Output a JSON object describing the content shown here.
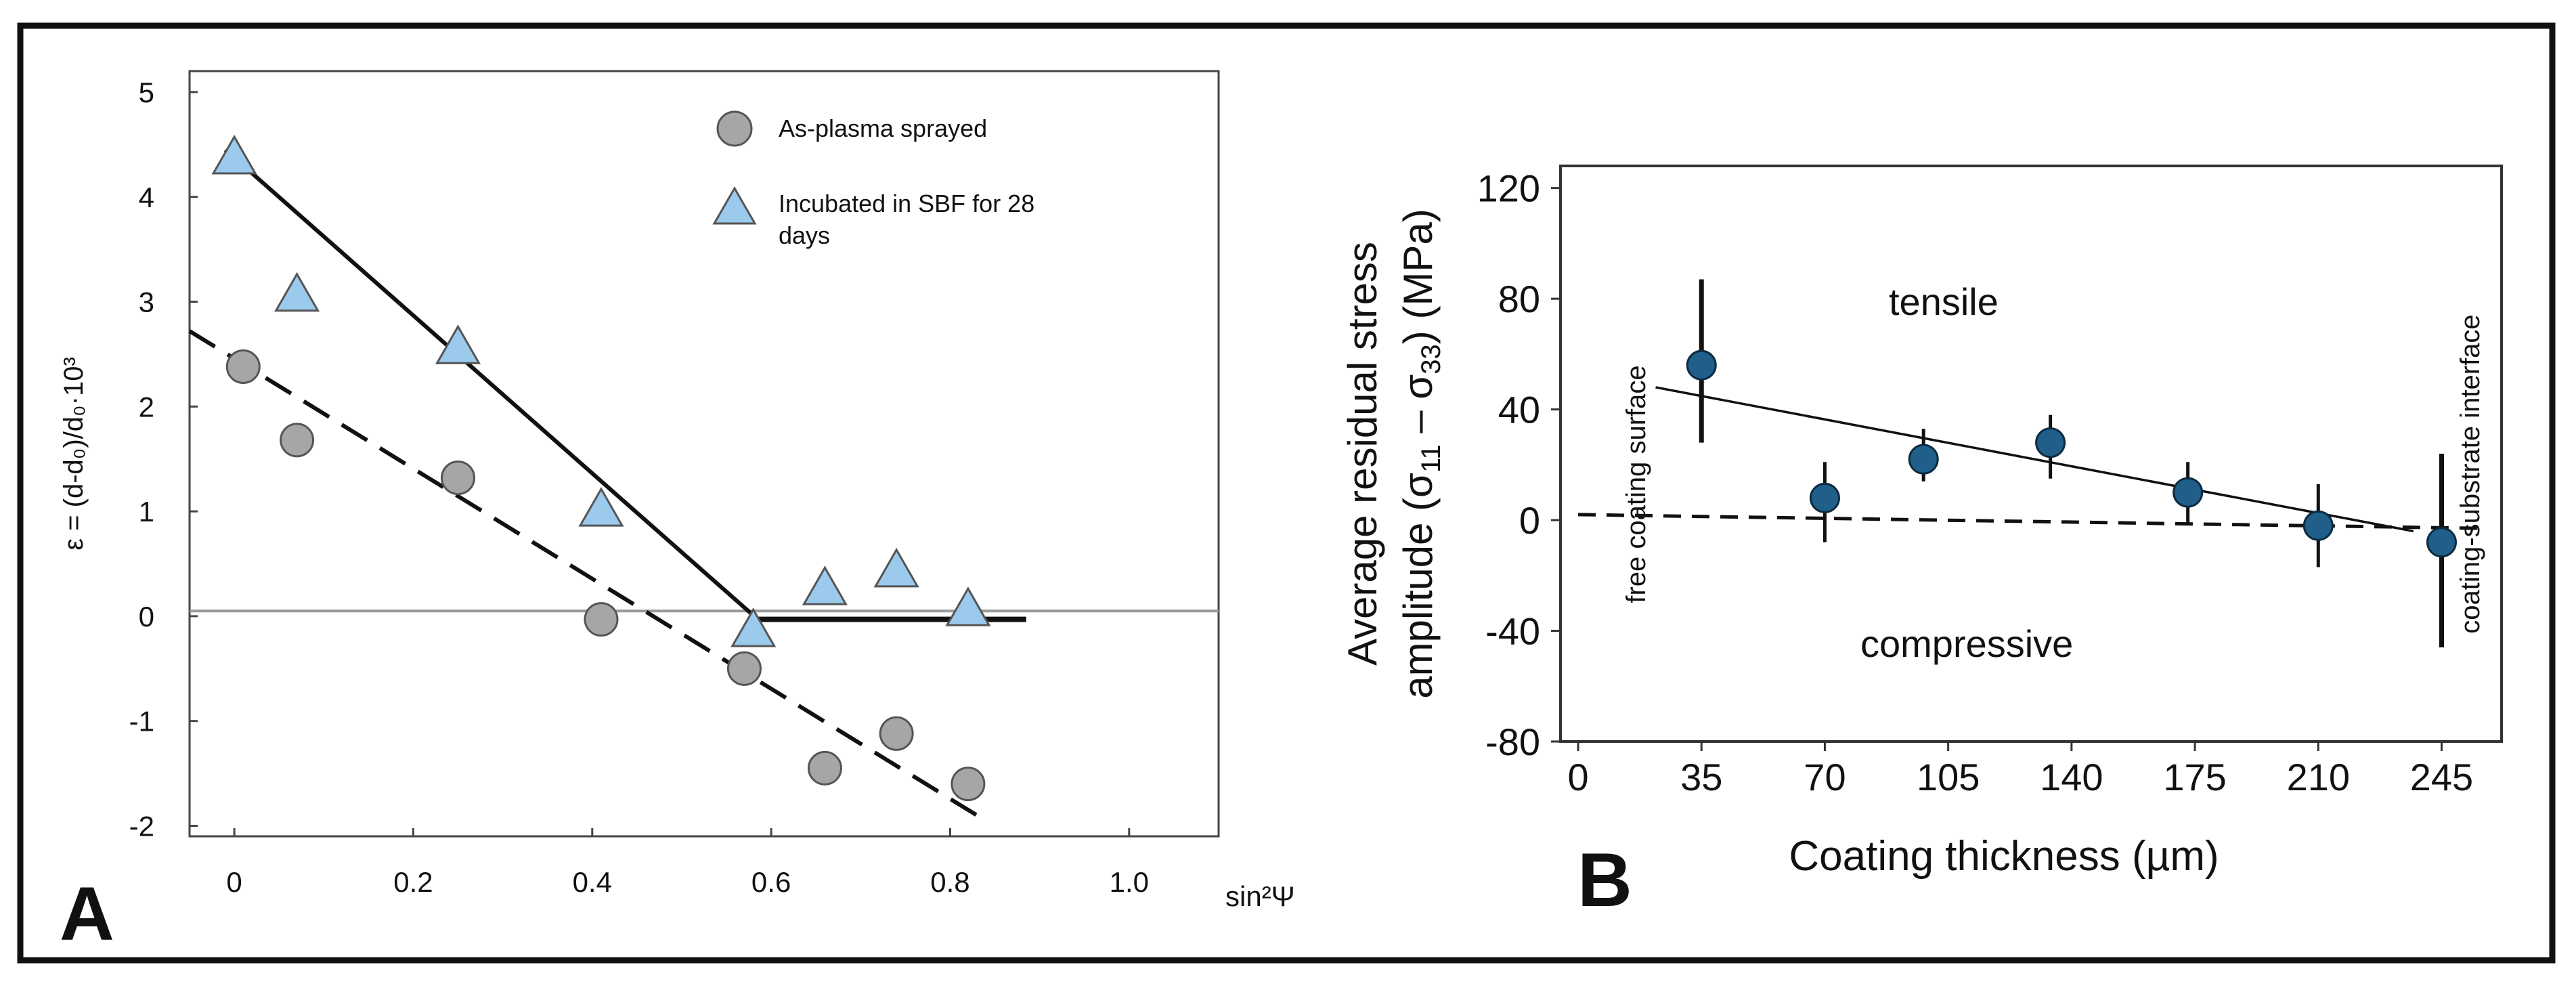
{
  "chart_data": [
    {
      "panel": "A",
      "type": "scatter",
      "panel_label": "A",
      "xlabel": "sin²Ψ",
      "ylabel": "ε = (d-d₀)/d₀·10³",
      "xlim": [
        -0.05,
        1.1
      ],
      "ylim": [
        -2.1,
        5.2
      ],
      "x_ticks": [
        0,
        0.2,
        0.4,
        0.6,
        0.8,
        1.0
      ],
      "x_tick_labels": [
        "0",
        "0.2",
        "0.4",
        "0.6",
        "0.8",
        "1.0"
      ],
      "y_ticks": [
        5,
        4,
        3,
        2,
        1,
        0,
        -1,
        -2
      ],
      "y_tick_labels": [
        "5",
        "4",
        "3",
        "2",
        "1",
        "0",
        "-1",
        "-2"
      ],
      "legend": [
        "As-plasma sprayed",
        "Incubated in SBF for 28 days"
      ],
      "legend_lines": [
        [
          "As-plasma sprayed"
        ],
        [
          "Incubated in SBF for 28",
          "days"
        ]
      ],
      "series": [
        {
          "name": "As-plasma sprayed",
          "marker": "circle",
          "color": "#a6a6a6",
          "points": [
            [
              0.01,
              2.38
            ],
            [
              0.07,
              1.68
            ],
            [
              0.25,
              1.32
            ],
            [
              0.41,
              -0.03
            ],
            [
              0.57,
              -0.5
            ],
            [
              0.66,
              -1.45
            ],
            [
              0.74,
              -1.12
            ],
            [
              0.82,
              -1.6
            ]
          ],
          "fit": {
            "style": "dashed",
            "x": [
              -0.05,
              0.83
            ],
            "y": [
              2.72,
              -1.9
            ]
          }
        },
        {
          "name": "Incubated in SBF for 28 days",
          "marker": "triangle",
          "color": "#9ccaed",
          "points": [
            [
              0.0,
              4.36
            ],
            [
              0.07,
              3.05
            ],
            [
              0.25,
              2.55
            ],
            [
              0.41,
              1.0
            ],
            [
              0.58,
              -0.15
            ],
            [
              0.66,
              0.25
            ],
            [
              0.74,
              0.42
            ],
            [
              0.82,
              0.05
            ]
          ],
          "fit": [
            {
              "style": "solid",
              "x": [
                -0.01,
                0.585
              ],
              "y": [
                4.45,
                -0.03
              ]
            },
            {
              "style": "solid",
              "x": [
                0.585,
                0.885
              ],
              "y": [
                -0.03,
                -0.03
              ]
            }
          ]
        }
      ],
      "reference_line": {
        "y": 0.05,
        "color": "#9a9a9a"
      }
    },
    {
      "panel": "B",
      "type": "scatter",
      "panel_label": "B",
      "xlabel": "Coating thickness (µm)",
      "ylabel_line1": "Average residual stress",
      "ylabel_prefix": "amplitude (σ",
      "ylabel_sub1": "11",
      "ylabel_mid": " – σ",
      "ylabel_sub2": "33",
      "ylabel_suffix": ") (MPa)",
      "xlim": [
        -5,
        262
      ],
      "ylim": [
        -80,
        128
      ],
      "x_ticks": [
        0,
        35,
        70,
        105,
        140,
        175,
        210,
        245
      ],
      "x_tick_labels": [
        "0",
        "35",
        "70",
        "105",
        "140",
        "175",
        "210",
        "245"
      ],
      "y_ticks": [
        120,
        80,
        40,
        0,
        -40,
        -80
      ],
      "y_tick_labels": [
        "120",
        "80",
        "40",
        "0",
        "-40",
        "-80"
      ],
      "annotations": {
        "tensile": "tensile",
        "compressive": "compressive",
        "left_edge": "free coating surface",
        "right_edge": "coating-substrate interface"
      },
      "series": [
        {
          "name": "Average residual stress amplitude",
          "marker": "circle",
          "color": "#1f5f8a",
          "x": [
            35,
            70,
            98,
            134,
            173,
            210,
            245
          ],
          "y": [
            56,
            8,
            22,
            28,
            10,
            -2,
            -8
          ],
          "err_low": [
            28,
            16,
            8,
            13,
            11,
            15,
            38
          ],
          "err_high": [
            31,
            13,
            11,
            10,
            11,
            15,
            32
          ]
        }
      ],
      "trend_line": {
        "style": "solid",
        "x": [
          22,
          237
        ],
        "y": [
          48,
          -4
        ]
      },
      "zero_line": {
        "style": "dashed",
        "x": [
          0,
          258
        ],
        "y": [
          2,
          -3
        ]
      }
    }
  ]
}
